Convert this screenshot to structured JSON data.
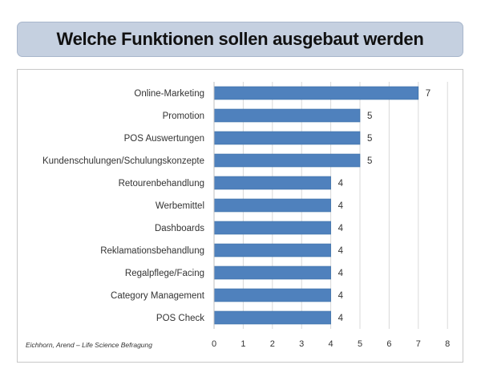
{
  "title": "Welche Funktionen sollen ausgebaut werden",
  "source_note": "Eichhorn, Arend – Life Science Befragung",
  "colors": {
    "bar": "#4f81bd",
    "bar_border": "#3a6ea5",
    "grid": "#d9d9d9",
    "banner": "#c5d0e0"
  },
  "chart_data": {
    "type": "bar",
    "orientation": "horizontal",
    "title": "Welche Funktionen sollen ausgebaut werden",
    "categories": [
      "Online-Marketing",
      "Promotion",
      "POS Auswertungen",
      "Kundenschulungen/Schulungskonzepte",
      "Retourenbehandlung",
      "Werbemittel",
      "Dashboards",
      "Reklamationsbehandlung",
      "Regalpflege/Facing",
      "Category Management",
      "POS Check"
    ],
    "values": [
      7,
      5,
      5,
      5,
      4,
      4,
      4,
      4,
      4,
      4,
      4
    ],
    "xlim": [
      0,
      8
    ],
    "xticks": [
      0,
      1,
      2,
      3,
      4,
      5,
      6,
      7,
      8
    ],
    "grid": true,
    "data_labels": true
  }
}
